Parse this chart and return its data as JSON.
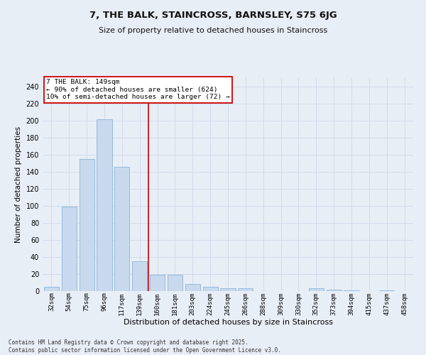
{
  "title_line1": "7, THE BALK, STAINCROSS, BARNSLEY, S75 6JG",
  "title_line2": "Size of property relative to detached houses in Staincross",
  "xlabel": "Distribution of detached houses by size in Staincross",
  "ylabel": "Number of detached properties",
  "categories": [
    "32sqm",
    "54sqm",
    "75sqm",
    "96sqm",
    "117sqm",
    "139sqm",
    "160sqm",
    "181sqm",
    "203sqm",
    "224sqm",
    "245sqm",
    "266sqm",
    "288sqm",
    "309sqm",
    "330sqm",
    "352sqm",
    "373sqm",
    "394sqm",
    "415sqm",
    "437sqm",
    "458sqm"
  ],
  "values": [
    5,
    99,
    155,
    202,
    146,
    35,
    19,
    19,
    8,
    5,
    3,
    3,
    0,
    0,
    0,
    3,
    2,
    1,
    0,
    1,
    0
  ],
  "bar_color": "#c8d9ed",
  "bar_edge_color": "#8ab4d8",
  "vline_x_index": 5,
  "vline_color": "#cc0000",
  "annotation_text": "7 THE BALK: 149sqm\n← 90% of detached houses are smaller (624)\n10% of semi-detached houses are larger (72) →",
  "annotation_box_color": "#ffffff",
  "annotation_box_edge": "#cc0000",
  "ylim": [
    0,
    250
  ],
  "yticks": [
    0,
    20,
    40,
    60,
    80,
    100,
    120,
    140,
    160,
    180,
    200,
    220,
    240
  ],
  "grid_color": "#d0dcea",
  "background_color": "#e8eef6",
  "footer_line1": "Contains HM Land Registry data © Crown copyright and database right 2025.",
  "footer_line2": "Contains public sector information licensed under the Open Government Licence v3.0."
}
